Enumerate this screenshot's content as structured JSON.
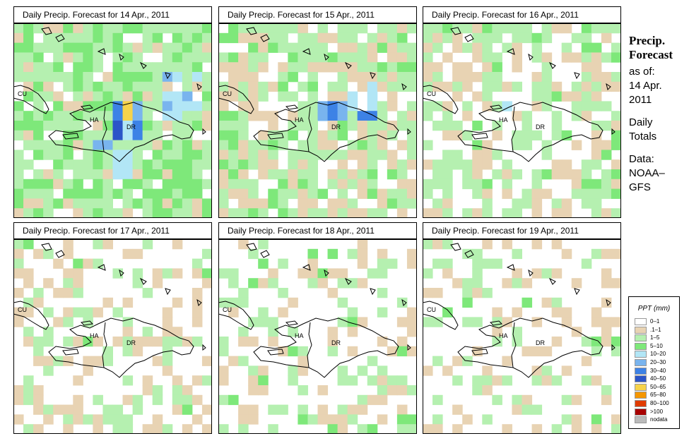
{
  "panels": [
    {
      "title": "Daily Precip. Forecast for 14 Apr., 2011"
    },
    {
      "title": "Daily Precip. Forecast for 15 Apr., 2011"
    },
    {
      "title": "Daily Precip. Forecast for 16 Apr., 2011"
    },
    {
      "title": "Daily Precip. Forecast for 17 Apr., 2011"
    },
    {
      "title": "Daily Precip. Forecast for 18 Apr., 2011"
    },
    {
      "title": "Daily Precip. Forecast for 19 Apr., 2011"
    }
  ],
  "map_labels": {
    "cuba": "CU",
    "haiti": "HA",
    "dominican_republic": "DR"
  },
  "side": {
    "line1": "Precip.",
    "line2": "Forecast",
    "line3": "as of:",
    "line4": "14 Apr.",
    "line5": "2011",
    "line6": "Daily",
    "line7": "Totals",
    "line8": "Data:",
    "line9": "NOAA–",
    "line10": "GFS"
  },
  "legend": {
    "title": "PPT (mm)",
    "items": [
      {
        "label": "0–1",
        "color": "#ffffff"
      },
      {
        "label": ".1–1",
        "color": "#e8d3b3"
      },
      {
        "label": "1–5",
        "color": "#b5f0b0"
      },
      {
        "label": "5–10",
        "color": "#7ee87a"
      },
      {
        "label": "10–20",
        "color": "#b2e6f6"
      },
      {
        "label": "20–30",
        "color": "#79b4ee"
      },
      {
        "label": "30–40",
        "color": "#3d82e6"
      },
      {
        "label": "40–50",
        "color": "#2b55c8"
      },
      {
        "label": "50–65",
        "color": "#f6d34a"
      },
      {
        "label": "65–80",
        "color": "#f59600"
      },
      {
        "label": "80–100",
        "color": "#e03c00"
      },
      {
        "label": ">100",
        "color": "#a80000"
      },
      {
        "label": "nodata",
        "color": "#bbbbbb"
      }
    ]
  }
}
